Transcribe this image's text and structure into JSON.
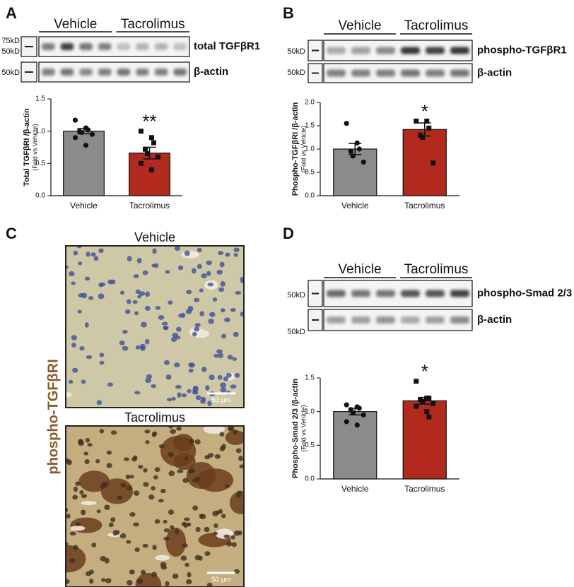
{
  "panels": [
    {
      "letter": "A",
      "groups": [
        "Vehicle",
        "Tacrolimus"
      ],
      "markers": [
        "75kD",
        "50kD",
        "50kD"
      ],
      "bands": [
        "total TGFβR1",
        "β-actin"
      ]
    },
    {
      "letter": "B",
      "groups": [
        "Vehicle",
        "Tacrolimus"
      ],
      "markers": [
        "50kD",
        "50kD"
      ],
      "bands": [
        "phospho-TGFβR1",
        "β-actin"
      ]
    },
    {
      "letter": "C",
      "titles": [
        "Vehicle",
        "Tacrolimus"
      ],
      "stain": "phospho-TGFβRI",
      "scalebars": [
        "50 μm",
        "50 μm"
      ]
    },
    {
      "letter": "D",
      "groups": [
        "Vehicle",
        "Tacrolimus"
      ],
      "markers": [
        "50kD",
        "50kD"
      ],
      "bands": [
        "phospho-Smad 2/3",
        "β-actin"
      ]
    }
  ],
  "chart_data": [
    {
      "type": "bar",
      "ylabel": "Total TGFβRI /β-actin",
      "ylabel_sub": "(Fold vs Vehicle)",
      "categories": [
        "Vehicle",
        "Tacrolimus"
      ],
      "values": [
        1.0,
        0.66
      ],
      "errors": [
        0.04,
        0.09
      ],
      "colors": [
        "#8a8c8c",
        "#b22a1e"
      ],
      "points": [
        [
          1.17,
          1.05,
          1.02,
          1.0,
          0.98,
          0.95,
          0.9,
          0.78
        ],
        [
          1.0,
          0.9,
          0.82,
          0.72,
          0.65,
          0.6,
          0.5,
          0.4
        ]
      ],
      "significance": "**",
      "ylim": [
        0,
        1.5
      ],
      "yticks": [
        {
          "value": 0,
          "label": "0.0"
        },
        0.5,
        {
          "value": 1,
          "label": "1.0"
        },
        1.5
      ]
    },
    {
      "type": "bar",
      "ylabel": "Phospho-TGFβRI /β-actin",
      "ylabel_sub": "(Fold vs Vehicle)",
      "categories": [
        "Vehicle",
        "Tacrolimus"
      ],
      "values": [
        1.0,
        1.42
      ],
      "errors": [
        0.12,
        0.14
      ],
      "colors": [
        "#8a8c8c",
        "#b22a1e"
      ],
      "points": [
        [
          1.55,
          1.13,
          1.0,
          0.95,
          0.85,
          0.72
        ],
        [
          1.6,
          1.6,
          1.45,
          1.3,
          1.25,
          0.7
        ]
      ],
      "significance": "*",
      "ylim": [
        0,
        2
      ],
      "yticks": [
        {
          "value": 0,
          "label": "0.0"
        },
        0.5,
        {
          "value": 1,
          "label": "1.0"
        },
        1.5,
        {
          "value": 2,
          "label": "2.0"
        }
      ]
    },
    {
      "type": "bar",
      "ylabel": "Phospho-Smad 2/3 /β-actin",
      "ylabel_sub": "(Fold vs Vehicle)",
      "categories": [
        "Vehicle",
        "Tacrolimus"
      ],
      "values": [
        1.0,
        1.16
      ],
      "errors": [
        0.05,
        0.05
      ],
      "colors": [
        "#8a8c8c",
        "#b22a1e"
      ],
      "points": [
        [
          1.1,
          1.07,
          1.05,
          1.03,
          0.98,
          0.95,
          0.85,
          0.8
        ],
        [
          1.45,
          1.2,
          1.2,
          1.18,
          1.15,
          1.12,
          1.08,
          1.0,
          0.92
        ]
      ],
      "significance": "*",
      "ylim": [
        0,
        1.5
      ],
      "yticks": [
        {
          "value": 0,
          "label": "0.0"
        },
        0.5,
        {
          "value": 1,
          "label": "1.0"
        },
        1.5
      ]
    }
  ]
}
